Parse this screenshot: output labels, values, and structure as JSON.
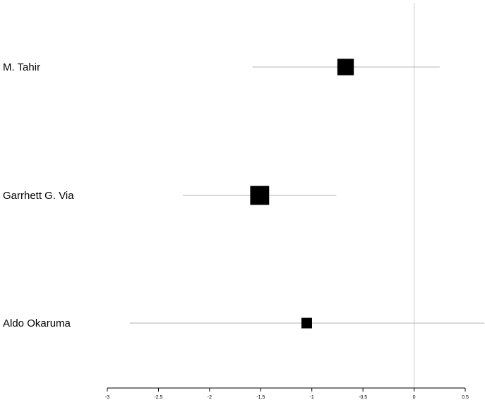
{
  "chart_data": {
    "type": "forest",
    "studies": [
      {
        "label": "M. Tahir",
        "estimate": -0.67,
        "ci_low": -1.58,
        "ci_high": 0.25,
        "weight": 0.34
      },
      {
        "label": "Garrhett G. Via",
        "estimate": -1.51,
        "ci_low": -2.26,
        "ci_high": -0.76,
        "weight": 0.45
      },
      {
        "label": "Aldo Okaruma",
        "estimate": -1.05,
        "ci_low": -2.78,
        "ci_high": 0.69,
        "weight": 0.14
      }
    ],
    "reference_line": 0,
    "xlim": [
      -3,
      0.5
    ],
    "x_ticks": [
      "-3",
      "-2.5",
      "-2",
      "-1.5",
      "-1",
      "-0.5",
      "0",
      "0.5"
    ],
    "colors": {
      "ci_line": "#b5b5b5",
      "ref_line": "#c8c8c8",
      "marker": "#000000",
      "axis": "#000000"
    }
  }
}
